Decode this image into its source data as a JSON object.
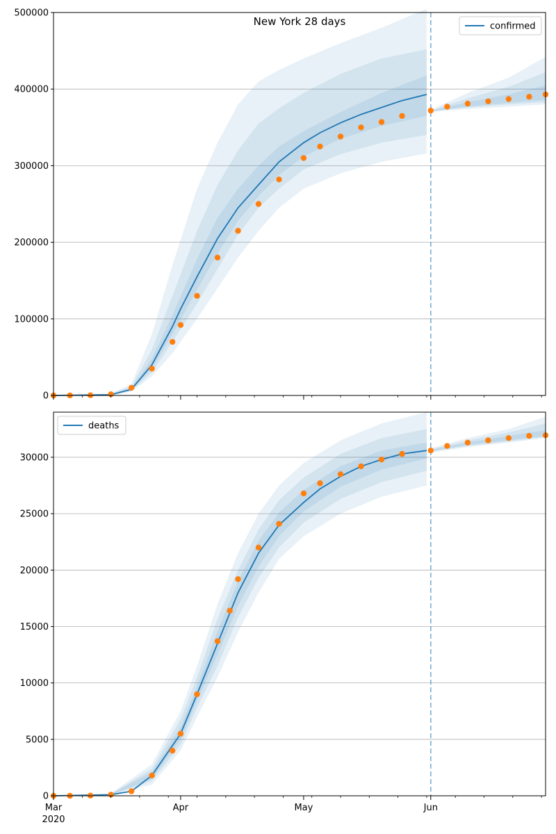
{
  "figure": {
    "title": "New York 28 days",
    "forecast_split_date": "2020-06-01",
    "x_axis": {
      "range": [
        "2020-03-01",
        "2020-06-29"
      ],
      "major_ticks": [
        {
          "date": "2020-03-01",
          "label": "Mar"
        },
        {
          "date": "2020-04-01",
          "label": "Apr"
        },
        {
          "date": "2020-05-01",
          "label": "May"
        },
        {
          "date": "2020-06-01",
          "label": "Jun"
        }
      ],
      "year_label": "2020"
    },
    "colors": {
      "model_line": "#1f77b4",
      "observed_points": "#ff7f0e",
      "band_fill": "#1f77b4",
      "split_line": "#1f77b4",
      "grid": "#b0b0b0"
    }
  },
  "chart_data": [
    {
      "type": "line",
      "name": "confirmed",
      "legend": "confirmed",
      "legend_position": "top-right",
      "ylim": [
        0,
        500000
      ],
      "yticks": [
        0,
        100000,
        200000,
        300000,
        400000,
        500000
      ],
      "grid_y": true,
      "model_line": {
        "x": [
          "2020-03-01",
          "2020-03-15",
          "2020-03-20",
          "2020-03-25",
          "2020-03-30",
          "2020-04-01",
          "2020-04-05",
          "2020-04-10",
          "2020-04-15",
          "2020-04-20",
          "2020-04-25",
          "2020-05-01",
          "2020-05-05",
          "2020-05-10",
          "2020-05-15",
          "2020-05-20",
          "2020-05-25",
          "2020-05-31"
        ],
        "y": [
          0,
          1000,
          8000,
          40000,
          90000,
          113000,
          155000,
          205000,
          245000,
          275000,
          305000,
          330000,
          343000,
          356000,
          367000,
          376000,
          385000,
          393000
        ]
      },
      "bands": [
        {
          "level": "outer",
          "x": [
            "2020-03-15",
            "2020-03-20",
            "2020-03-25",
            "2020-03-30",
            "2020-04-05",
            "2020-04-10",
            "2020-04-15",
            "2020-04-20",
            "2020-04-25",
            "2020-05-01",
            "2020-05-10",
            "2020-05-20",
            "2020-05-31"
          ],
          "lower": [
            0,
            5000,
            25000,
            55000,
            100000,
            140000,
            180000,
            215000,
            245000,
            270000,
            290000,
            305000,
            316000
          ],
          "upper": [
            3000,
            15000,
            80000,
            170000,
            270000,
            330000,
            380000,
            410000,
            425000,
            440000,
            460000,
            480000,
            505000
          ]
        },
        {
          "level": "middle",
          "x": [
            "2020-03-15",
            "2020-03-20",
            "2020-03-25",
            "2020-03-30",
            "2020-04-05",
            "2020-04-10",
            "2020-04-15",
            "2020-04-20",
            "2020-04-25",
            "2020-05-01",
            "2020-05-10",
            "2020-05-20",
            "2020-05-31"
          ],
          "lower": [
            0,
            6000,
            30000,
            70000,
            120000,
            165000,
            210000,
            245000,
            270000,
            295000,
            315000,
            330000,
            340000
          ],
          "upper": [
            2000,
            12000,
            60000,
            130000,
            215000,
            275000,
            320000,
            355000,
            375000,
            395000,
            420000,
            440000,
            452000
          ]
        },
        {
          "level": "inner",
          "x": [
            "2020-03-15",
            "2020-03-20",
            "2020-03-25",
            "2020-03-30",
            "2020-04-05",
            "2020-04-10",
            "2020-04-15",
            "2020-04-20",
            "2020-04-25",
            "2020-05-01",
            "2020-05-10",
            "2020-05-20",
            "2020-05-31"
          ],
          "lower": [
            0,
            7000,
            35000,
            80000,
            138000,
            185000,
            228000,
            260000,
            288000,
            312000,
            335000,
            352000,
            365000
          ],
          "upper": [
            1500,
            10000,
            48000,
            105000,
            178000,
            232000,
            270000,
            300000,
            325000,
            345000,
            370000,
            395000,
            418000
          ]
        }
      ],
      "forecast_bands": [
        {
          "level": "outer",
          "x": [
            "2020-06-01",
            "2020-06-10",
            "2020-06-20",
            "2020-06-29"
          ],
          "lower": [
            370000,
            374000,
            377000,
            380000
          ],
          "upper": [
            373000,
            395000,
            415000,
            442000
          ]
        },
        {
          "level": "middle",
          "x": [
            "2020-06-01",
            "2020-06-10",
            "2020-06-20",
            "2020-06-29"
          ],
          "lower": [
            371000,
            376000,
            380000,
            383000
          ],
          "upper": [
            372000,
            388000,
            403000,
            422000
          ]
        },
        {
          "level": "inner",
          "x": [
            "2020-06-01",
            "2020-06-10",
            "2020-06-20",
            "2020-06-29"
          ],
          "lower": [
            371000,
            377000,
            382000,
            386000
          ],
          "upper": [
            372000,
            383000,
            393000,
            405000
          ]
        }
      ],
      "observed": {
        "x": [
          "2020-03-01",
          "2020-03-05",
          "2020-03-10",
          "2020-03-15",
          "2020-03-20",
          "2020-03-25",
          "2020-03-30",
          "2020-04-01",
          "2020-04-05",
          "2020-04-10",
          "2020-04-15",
          "2020-04-20",
          "2020-04-25",
          "2020-05-01",
          "2020-05-05",
          "2020-05-10",
          "2020-05-15",
          "2020-05-20",
          "2020-05-25",
          "2020-06-01",
          "2020-06-05",
          "2020-06-10",
          "2020-06-15",
          "2020-06-20",
          "2020-06-25",
          "2020-06-29"
        ],
        "y": [
          0,
          50,
          300,
          1500,
          10000,
          35000,
          70000,
          92000,
          130000,
          180000,
          215000,
          250000,
          282000,
          310000,
          325000,
          338000,
          350000,
          357000,
          365000,
          372000,
          377000,
          381000,
          384000,
          387000,
          390000,
          393000
        ]
      }
    },
    {
      "type": "line",
      "name": "deaths",
      "legend": "deaths",
      "legend_position": "top-left",
      "ylim": [
        0,
        34000
      ],
      "yticks": [
        0,
        5000,
        10000,
        15000,
        20000,
        25000,
        30000
      ],
      "grid_y": true,
      "model_line": {
        "x": [
          "2020-03-01",
          "2020-03-15",
          "2020-03-20",
          "2020-03-25",
          "2020-04-01",
          "2020-04-05",
          "2020-04-10",
          "2020-04-15",
          "2020-04-20",
          "2020-04-25",
          "2020-05-01",
          "2020-05-05",
          "2020-05-10",
          "2020-05-15",
          "2020-05-20",
          "2020-05-25",
          "2020-05-31"
        ],
        "y": [
          0,
          100,
          400,
          1800,
          5500,
          9000,
          13500,
          18000,
          21500,
          24000,
          26000,
          27200,
          28300,
          29200,
          29800,
          30300,
          30600
        ]
      },
      "bands": [
        {
          "level": "outer",
          "x": [
            "2020-03-15",
            "2020-03-25",
            "2020-04-01",
            "2020-04-05",
            "2020-04-10",
            "2020-04-15",
            "2020-04-20",
            "2020-04-25",
            "2020-05-01",
            "2020-05-10",
            "2020-05-20",
            "2020-05-31"
          ],
          "lower": [
            50,
            1000,
            4000,
            7000,
            10500,
            14500,
            18000,
            21000,
            23000,
            25000,
            26500,
            27500
          ],
          "upper": [
            200,
            2800,
            7500,
            11500,
            17000,
            21500,
            25000,
            27500,
            29500,
            31500,
            33000,
            34000
          ]
        },
        {
          "level": "middle",
          "x": [
            "2020-03-15",
            "2020-03-25",
            "2020-04-01",
            "2020-04-05",
            "2020-04-10",
            "2020-04-15",
            "2020-04-20",
            "2020-04-25",
            "2020-05-01",
            "2020-05-10",
            "2020-05-20",
            "2020-05-31"
          ],
          "lower": [
            60,
            1300,
            4500,
            7800,
            11500,
            15800,
            19300,
            22000,
            24200,
            26300,
            27800,
            28800
          ],
          "upper": [
            180,
            2400,
            6800,
            10500,
            15700,
            20000,
            23600,
            26200,
            28200,
            30300,
            31700,
            32500
          ]
        },
        {
          "level": "inner",
          "x": [
            "2020-03-15",
            "2020-03-25",
            "2020-04-01",
            "2020-04-05",
            "2020-04-10",
            "2020-04-15",
            "2020-04-20",
            "2020-04-25",
            "2020-05-01",
            "2020-05-10",
            "2020-05-20",
            "2020-05-31"
          ],
          "lower": [
            70,
            1500,
            5000,
            8400,
            12500,
            16800,
            20300,
            23000,
            25200,
            27400,
            28900,
            29900
          ],
          "upper": [
            160,
            2100,
            6100,
            9700,
            14600,
            19000,
            22600,
            25100,
            27100,
            29200,
            30600,
            31300
          ]
        }
      ],
      "forecast_bands": [
        {
          "level": "outer",
          "x": [
            "2020-06-01",
            "2020-06-10",
            "2020-06-20",
            "2020-06-29"
          ],
          "lower": [
            30400,
            30900,
            31300,
            31700
          ],
          "upper": [
            30800,
            31700,
            32500,
            33600
          ]
        },
        {
          "level": "middle",
          "x": [
            "2020-06-01",
            "2020-06-10",
            "2020-06-20",
            "2020-06-29"
          ],
          "lower": [
            30500,
            31000,
            31400,
            31800
          ],
          "upper": [
            30700,
            31500,
            32200,
            33000
          ]
        },
        {
          "level": "inner",
          "x": [
            "2020-06-01",
            "2020-06-10",
            "2020-06-20",
            "2020-06-29"
          ],
          "lower": [
            30550,
            31100,
            31500,
            31900
          ],
          "upper": [
            30650,
            31300,
            31900,
            32400
          ]
        }
      ],
      "observed": {
        "x": [
          "2020-03-01",
          "2020-03-05",
          "2020-03-10",
          "2020-03-15",
          "2020-03-20",
          "2020-03-25",
          "2020-03-30",
          "2020-04-01",
          "2020-04-05",
          "2020-04-10",
          "2020-04-13",
          "2020-04-15",
          "2020-04-20",
          "2020-04-25",
          "2020-05-01",
          "2020-05-05",
          "2020-05-10",
          "2020-05-15",
          "2020-05-20",
          "2020-05-25",
          "2020-06-01",
          "2020-06-05",
          "2020-06-10",
          "2020-06-15",
          "2020-06-20",
          "2020-06-25",
          "2020-06-29"
        ],
        "y": [
          0,
          0,
          20,
          100,
          400,
          1800,
          4000,
          5500,
          9000,
          13700,
          16400,
          19200,
          22000,
          24100,
          26800,
          27700,
          28500,
          29200,
          29800,
          30300,
          30600,
          31000,
          31300,
          31500,
          31700,
          31900,
          31950
        ]
      }
    }
  ]
}
